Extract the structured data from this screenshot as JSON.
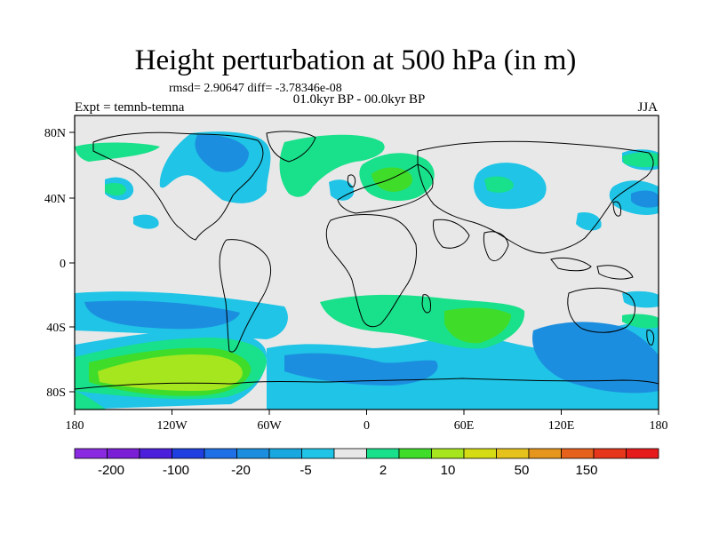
{
  "title": "Height perturbation at 500 hPa (in m)",
  "stats_line": "rmsd= 2.90647 diff= -3.78346e-08",
  "period_line": "01.0kyr BP - 00.0kyr BP",
  "expt_label": "Expt = temnb-temna",
  "season_label": "JJA",
  "axes": {
    "x_ticks": [
      "180",
      "120W",
      "60W",
      "0",
      "60E",
      "120E",
      "180"
    ],
    "y_ticks": [
      "80N",
      "40N",
      "0",
      "40S",
      "80S"
    ]
  },
  "colorbar": {
    "labels": [
      "-200",
      "-100",
      "-20",
      "-5",
      "2",
      "10",
      "50",
      "150"
    ],
    "colors": [
      "#8a2be2",
      "#7a1fd6",
      "#4b1fdc",
      "#1f3fe0",
      "#1f6fe6",
      "#1c8ee0",
      "#19a7df",
      "#1fc4e6",
      "#e8e8e8",
      "#19e08a",
      "#3fdc2a",
      "#a6e61f",
      "#d6dc14",
      "#e6c21c",
      "#e6961c",
      "#e6621c",
      "#e6361c",
      "#e61c1c"
    ]
  }
}
